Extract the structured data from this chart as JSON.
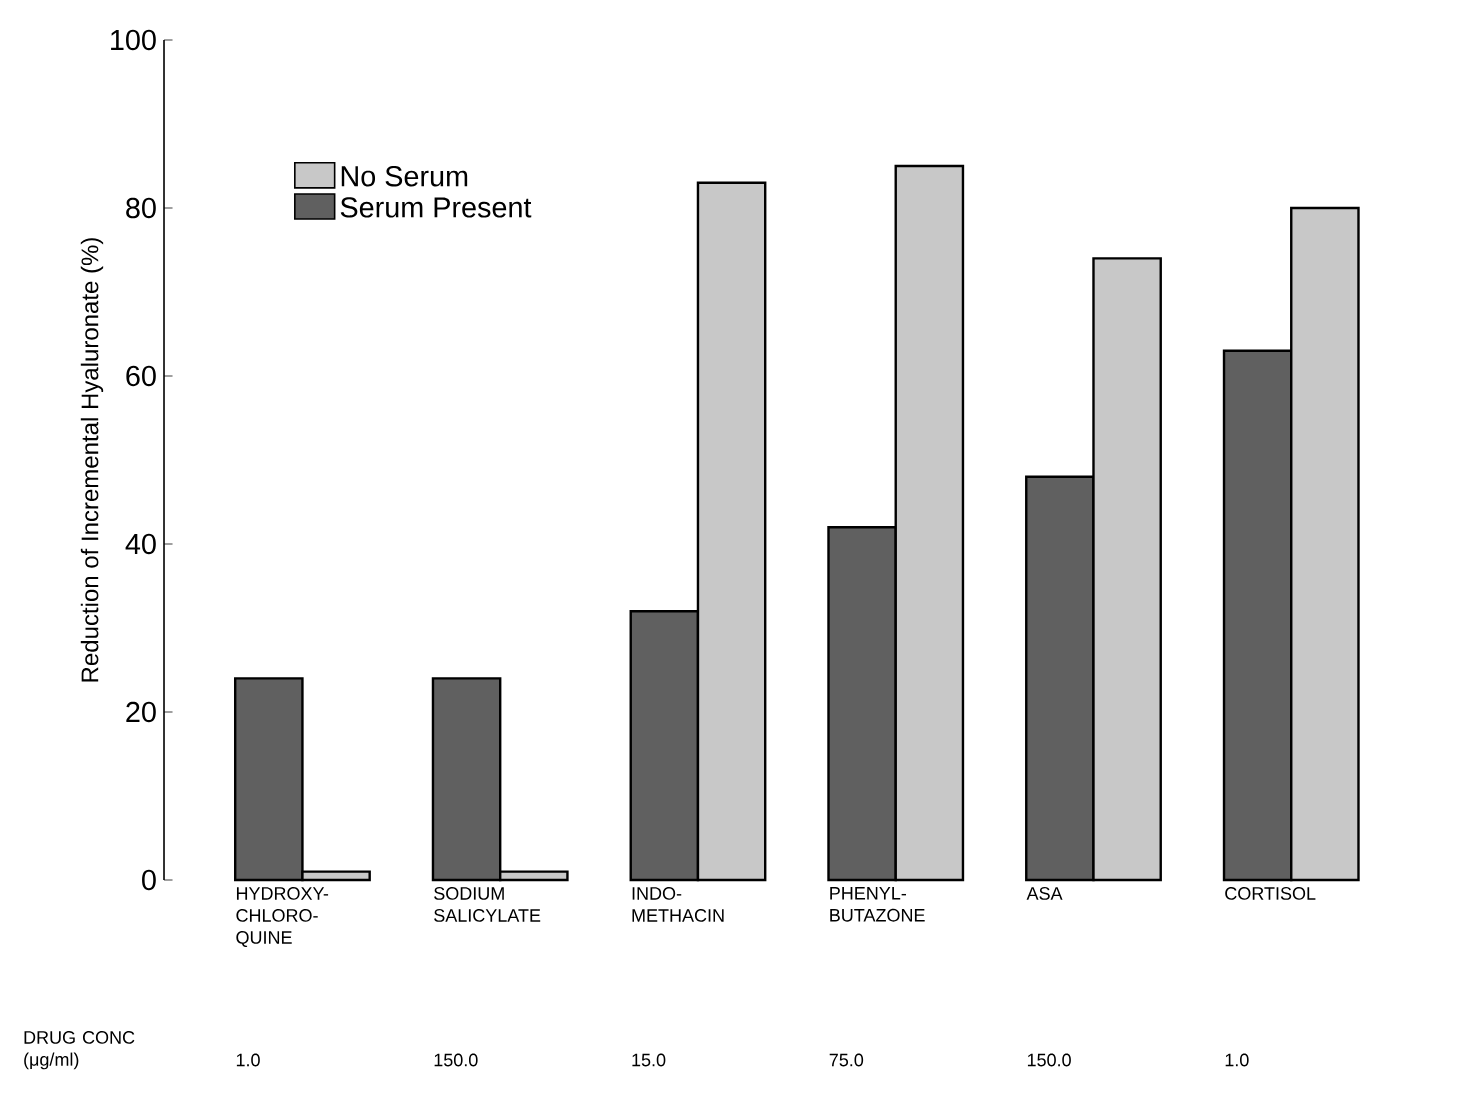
{
  "chart_data": {
    "type": "bar",
    "ylabel": "Reduction of Incremental Hyaluronate (%)",
    "categories": [
      "HYDROXY- CHLORO- QUINE",
      "SODIUM SALICYLATE",
      "INDO- METHACIN",
      "PHENYL- BUTAZONE",
      "ASA",
      "CORTISOL"
    ],
    "series": [
      {
        "name": "Serum Present",
        "color": "#606060",
        "values": [
          24,
          24,
          32,
          42,
          48,
          63
        ]
      },
      {
        "name": "No Serum",
        "color": "#c8c8c8",
        "values": [
          1,
          1,
          83,
          85,
          74,
          80
        ]
      }
    ],
    "ylim": [
      0,
      100
    ],
    "yticks": [
      0,
      20,
      40,
      60,
      80,
      100
    ],
    "legend": "top left",
    "annotations": [
      "DRUG CONC (μg/ml)",
      "1.0",
      "150.0",
      "15.0",
      "75.0",
      "150.0",
      "1.0"
    ]
  }
}
